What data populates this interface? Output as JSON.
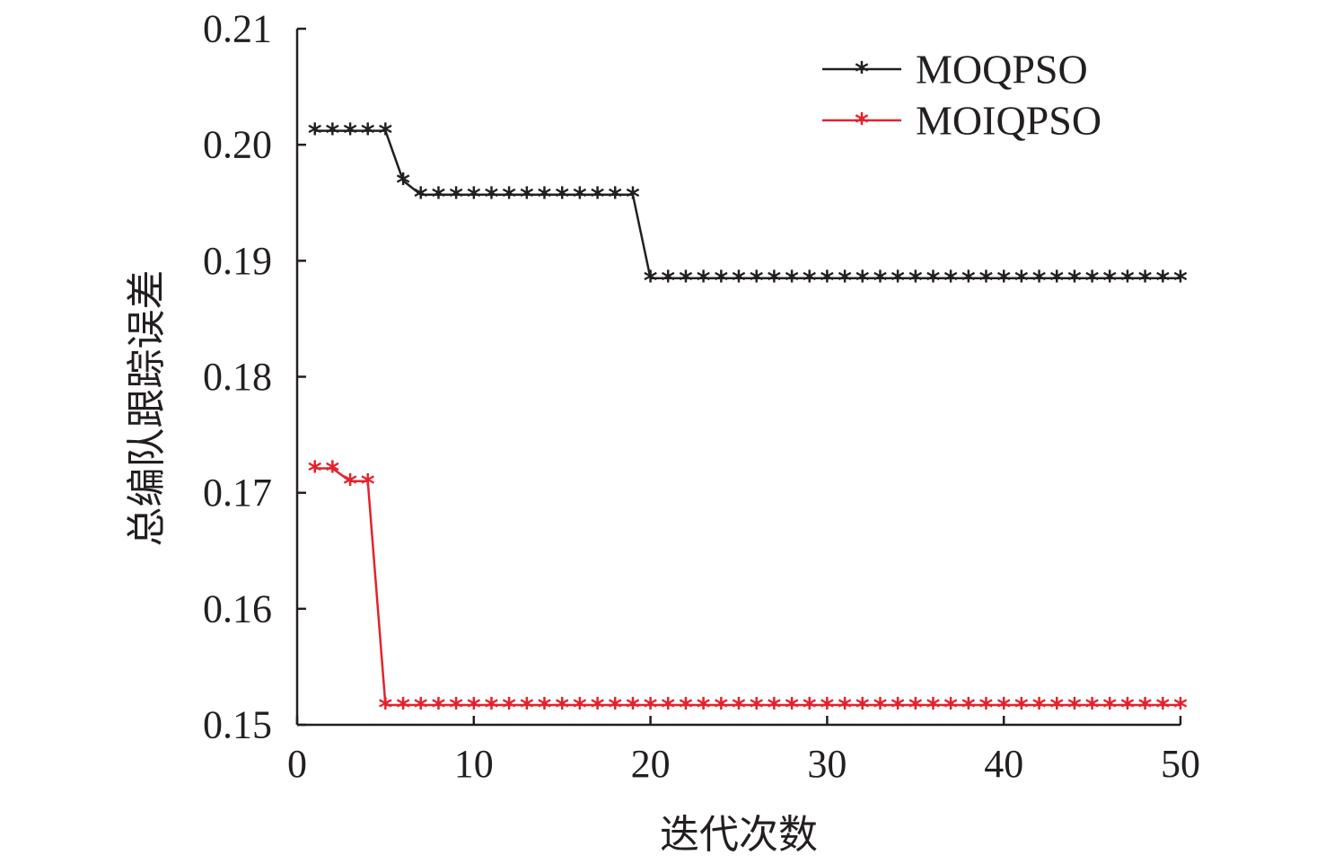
{
  "chart_data": {
    "type": "line",
    "xlabel": "迭代次数",
    "ylabel": "总编队跟踪误差",
    "xlim": [
      0,
      50
    ],
    "ylim": [
      0.15,
      0.21
    ],
    "x_ticks": [
      "0",
      "10",
      "20",
      "30",
      "40",
      "50"
    ],
    "y_ticks": [
      "0.15",
      "0.16",
      "0.17",
      "0.18",
      "0.19",
      "0.20",
      "0.21"
    ],
    "legend_position": "top-right",
    "grid": false,
    "x": [
      1,
      2,
      3,
      4,
      5,
      6,
      7,
      8,
      9,
      10,
      11,
      12,
      13,
      14,
      15,
      16,
      17,
      18,
      19,
      20,
      21,
      22,
      23,
      24,
      25,
      26,
      27,
      28,
      29,
      30,
      31,
      32,
      33,
      34,
      35,
      36,
      37,
      38,
      39,
      40,
      41,
      42,
      43,
      44,
      45,
      46,
      47,
      48,
      49,
      50
    ],
    "series": [
      {
        "name": "MOQPSO",
        "color": "#231f20",
        "marker": "asterisk",
        "values": [
          0.2012,
          0.2012,
          0.2012,
          0.2012,
          0.2012,
          0.1969,
          0.1957,
          0.1957,
          0.1957,
          0.1957,
          0.1957,
          0.1957,
          0.1957,
          0.1957,
          0.1957,
          0.1957,
          0.1957,
          0.1957,
          0.1957,
          0.1885,
          0.1885,
          0.1885,
          0.1885,
          0.1885,
          0.1885,
          0.1885,
          0.1885,
          0.1885,
          0.1885,
          0.1885,
          0.1885,
          0.1885,
          0.1885,
          0.1885,
          0.1885,
          0.1885,
          0.1885,
          0.1885,
          0.1885,
          0.1885,
          0.1885,
          0.1885,
          0.1885,
          0.1885,
          0.1885,
          0.1885,
          0.1885,
          0.1885,
          0.1885,
          0.1885
        ]
      },
      {
        "name": "MOIQPSO",
        "color": "#e4222b",
        "marker": "asterisk",
        "values": [
          0.1721,
          0.1721,
          0.171,
          0.171,
          0.1517,
          0.1517,
          0.1517,
          0.1517,
          0.1517,
          0.1517,
          0.1517,
          0.1517,
          0.1517,
          0.1517,
          0.1517,
          0.1517,
          0.1517,
          0.1517,
          0.1517,
          0.1517,
          0.1517,
          0.1517,
          0.1517,
          0.1517,
          0.1517,
          0.1517,
          0.1517,
          0.1517,
          0.1517,
          0.1517,
          0.1517,
          0.1517,
          0.1517,
          0.1517,
          0.1517,
          0.1517,
          0.1517,
          0.1517,
          0.1517,
          0.1517,
          0.1517,
          0.1517,
          0.1517,
          0.1517,
          0.1517,
          0.1517,
          0.1517,
          0.1517,
          0.1517,
          0.1517
        ]
      }
    ]
  }
}
